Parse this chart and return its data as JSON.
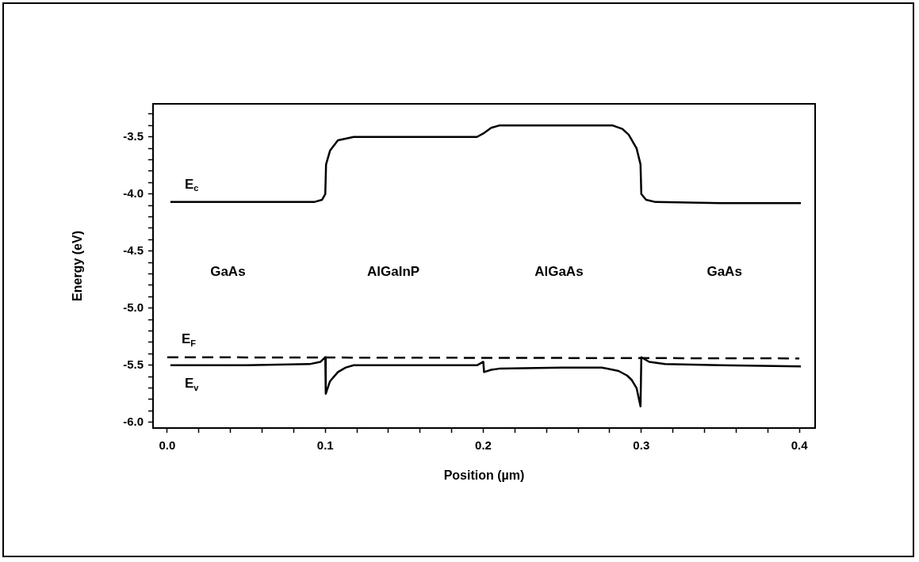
{
  "chart_data": {
    "type": "line",
    "xlabel": "Position (µm)",
    "ylabel": "Energy (eV)",
    "xlim": [
      -0.009,
      0.41
    ],
    "ylim": [
      -6.05,
      -3.21
    ],
    "xticks": [
      {
        "value": 0,
        "label": "0.0"
      },
      {
        "value": 0.02,
        "label": null
      },
      {
        "value": 0.04,
        "label": null
      },
      {
        "value": 0.06,
        "label": null
      },
      {
        "value": 0.08,
        "label": null
      },
      0.1,
      {
        "value": 0.12,
        "label": null
      },
      {
        "value": 0.14,
        "label": null
      },
      {
        "value": 0.16,
        "label": null
      },
      {
        "value": 0.18,
        "label": null
      },
      0.2,
      {
        "value": 0.22,
        "label": null
      },
      {
        "value": 0.24,
        "label": null
      },
      {
        "value": 0.26,
        "label": null
      },
      {
        "value": 0.28,
        "label": null
      },
      0.3,
      {
        "value": 0.32,
        "label": null
      },
      {
        "value": 0.34,
        "label": null
      },
      {
        "value": 0.36,
        "label": null
      },
      {
        "value": 0.38,
        "label": null
      },
      0.4
    ],
    "yticks": [
      {
        "value": -6.0,
        "label": "-6.0"
      },
      {
        "value": -5.9,
        "label": null
      },
      {
        "value": -5.8,
        "label": null
      },
      {
        "value": -5.7,
        "label": null
      },
      {
        "value": -5.6,
        "label": null
      },
      {
        "value": -5.5,
        "label": "-5.5"
      },
      {
        "value": -5.4,
        "label": null
      },
      {
        "value": -5.3,
        "label": null
      },
      {
        "value": -5.2,
        "label": null
      },
      {
        "value": -5.1,
        "label": null
      },
      {
        "value": -5.0,
        "label": "-5.0"
      },
      {
        "value": -4.9,
        "label": null
      },
      {
        "value": -4.8,
        "label": null
      },
      {
        "value": -4.7,
        "label": null
      },
      {
        "value": -4.6,
        "label": null
      },
      {
        "value": -4.5,
        "label": "-4.5"
      },
      {
        "value": -4.4,
        "label": null
      },
      {
        "value": -4.3,
        "label": null
      },
      {
        "value": -4.2,
        "label": null
      },
      {
        "value": -4.1,
        "label": null
      },
      {
        "value": -4.0,
        "label": "-4.0"
      },
      {
        "value": -3.9,
        "label": null
      },
      {
        "value": -3.8,
        "label": null
      },
      {
        "value": -3.7,
        "label": null
      },
      {
        "value": -3.6,
        "label": null
      },
      {
        "value": -3.5,
        "label": "-3.5"
      },
      {
        "value": -3.4,
        "label": null
      },
      {
        "value": -3.3,
        "label": null
      }
    ],
    "marker": "none",
    "series": [
      {
        "name": "E$_{c}$",
        "color": "#000000",
        "line_style": "solid",
        "x": [
          0.002,
          0.05,
          0.093,
          0.098,
          0.1,
          0.1005,
          0.103,
          0.108,
          0.118,
          0.15,
          0.196,
          0.2,
          0.205,
          0.21,
          0.25,
          0.282,
          0.288,
          0.292,
          0.297,
          0.2995,
          0.3,
          0.303,
          0.309,
          0.35,
          0.401
        ],
        "values": [
          -4.07,
          -4.07,
          -4.07,
          -4.05,
          -4.0,
          -3.74,
          -3.62,
          -3.53,
          -3.5,
          -3.5,
          -3.5,
          -3.47,
          -3.42,
          -3.4,
          -3.4,
          -3.4,
          -3.43,
          -3.48,
          -3.6,
          -3.74,
          -4.0,
          -4.05,
          -4.07,
          -4.08,
          -4.08
        ]
      },
      {
        "name": "E$_{F}$",
        "color": "#000000",
        "line_style": "dashed",
        "x": [
          0.0,
          0.4
        ],
        "values": [
          -5.43,
          -5.44
        ]
      },
      {
        "name": "E$_{v}$",
        "color": "#000000",
        "line_style": "solid",
        "x": [
          0.002,
          0.05,
          0.09,
          0.097,
          0.1,
          0.1003,
          0.103,
          0.108,
          0.113,
          0.118,
          0.15,
          0.196,
          0.2,
          0.2005,
          0.205,
          0.21,
          0.25,
          0.275,
          0.2856,
          0.291,
          0.294,
          0.297,
          0.2995,
          0.3,
          0.305,
          0.315,
          0.35,
          0.401
        ],
        "values": [
          -5.5,
          -5.5,
          -5.49,
          -5.47,
          -5.43,
          -5.75,
          -5.64,
          -5.56,
          -5.52,
          -5.5,
          -5.5,
          -5.5,
          -5.47,
          -5.56,
          -5.54,
          -5.53,
          -5.52,
          -5.52,
          -5.55,
          -5.59,
          -5.63,
          -5.7,
          -5.86,
          -5.43,
          -5.47,
          -5.49,
          -5.5,
          -5.51
        ]
      }
    ],
    "annotations": [
      "GaAs",
      "AlGaInP",
      "AlGaAs",
      "GaAs"
    ]
  }
}
